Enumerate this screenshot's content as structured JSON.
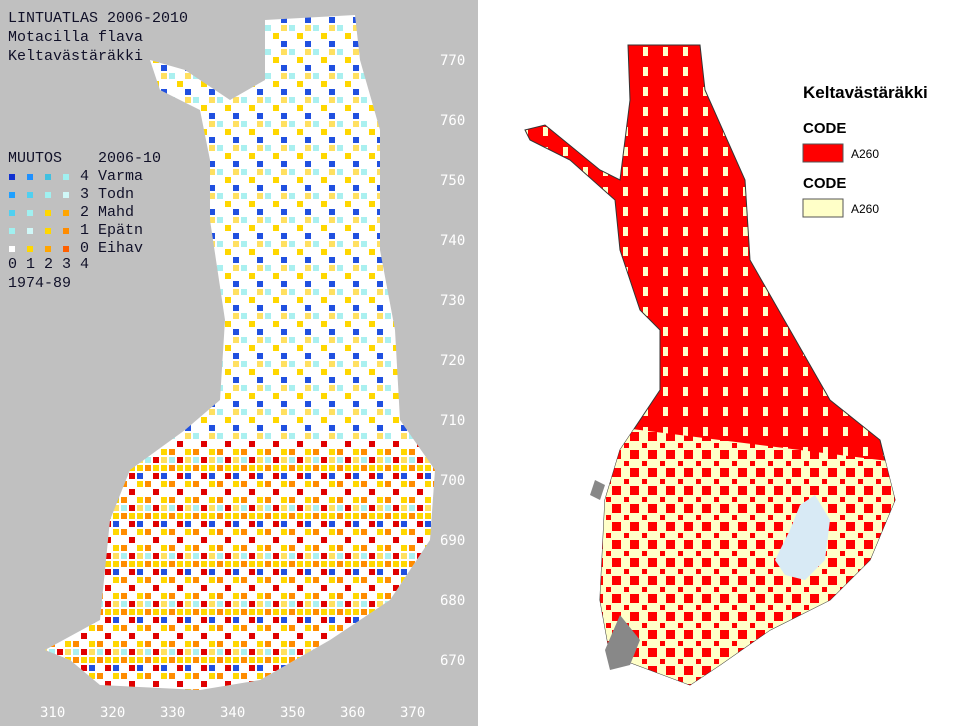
{
  "left_map": {
    "title_lines": [
      "LINTUATLAS 2006-2010",
      "Motacilla flava",
      "Keltavästäräkki"
    ],
    "legend_header": [
      "MUUTOS",
      "2006-10"
    ],
    "legend_rows": [
      "4 Varma",
      "3 Todn",
      "2 Mahd",
      "1 Epätn",
      "0 Eihav"
    ],
    "legend_footer": [
      "0 1 2 3 4",
      "1974-89"
    ],
    "y_labels": [
      "770",
      "760",
      "750",
      "740",
      "730",
      "720",
      "710",
      "700",
      "690",
      "680",
      "670"
    ],
    "x_labels": [
      "310",
      "320",
      "330",
      "340",
      "350",
      "360",
      "370"
    ]
  },
  "right_map": {
    "title": "Keltavästäräkki",
    "legend": [
      {
        "heading": "CODE",
        "label": "A260",
        "color": "#ff0000"
      },
      {
        "heading": "CODE",
        "label": "A260",
        "color": "#ffffc8"
      }
    ]
  }
}
